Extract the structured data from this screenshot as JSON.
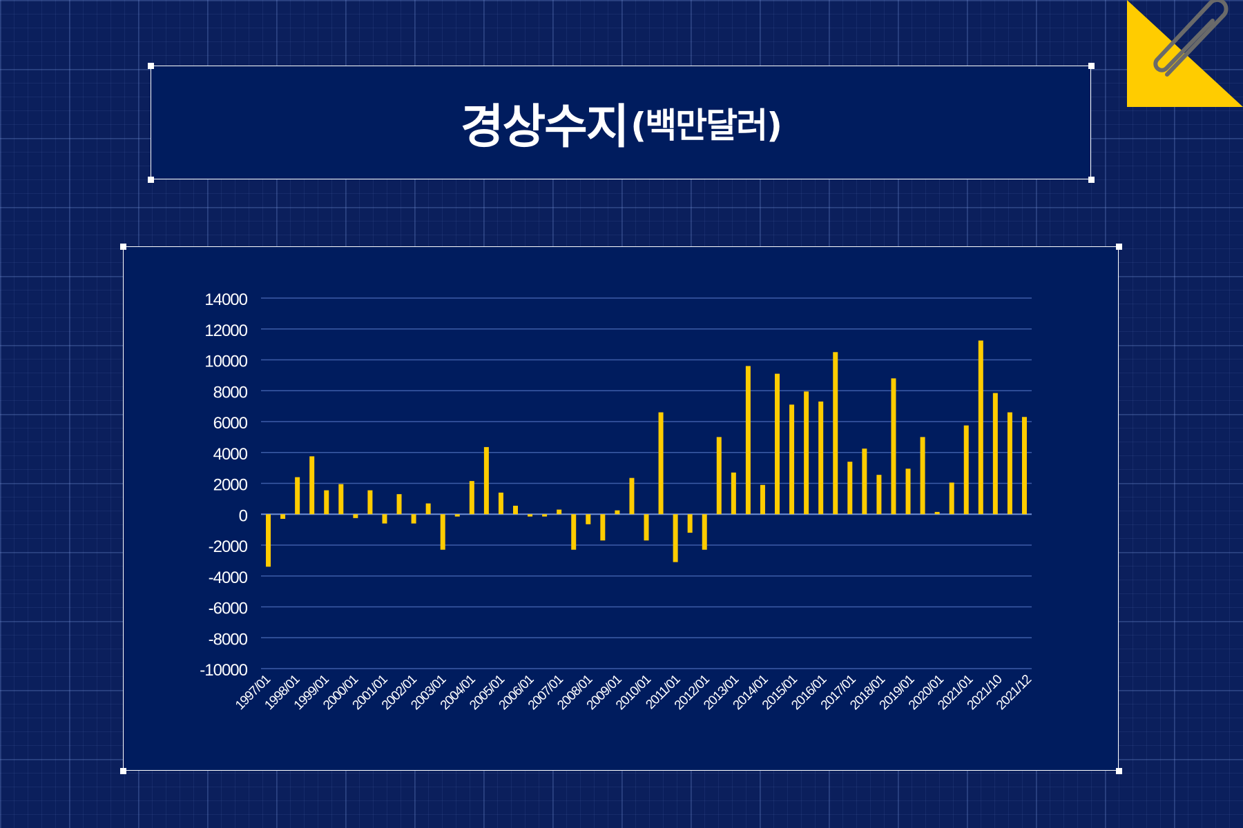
{
  "title": {
    "main": "경상수지",
    "sub": "(백만달러)"
  },
  "colors": {
    "background": "#0b1f5c",
    "panel": "#001c5e",
    "bar": "#ffcc00",
    "accent": "#ffcc00",
    "text": "#ffffff"
  },
  "icons": {
    "corner": "paperclip-icon"
  },
  "chart_data": {
    "type": "bar",
    "title": "경상수지(백만달러)",
    "xlabel": "",
    "ylabel": "",
    "ylim": [
      -10000,
      14000
    ],
    "yticks": [
      14000,
      12000,
      10000,
      8000,
      6000,
      4000,
      2000,
      0,
      -2000,
      -4000,
      -6000,
      -8000,
      -10000
    ],
    "grid": true,
    "legend": "none",
    "x_tick_labels": [
      "1997/01",
      "1998/01",
      "1999/01",
      "2000/01",
      "2001/01",
      "2002/01",
      "2003/01",
      "2004/01",
      "2005/01",
      "2006/01",
      "2007/01",
      "2008/01",
      "2009/01",
      "2010/01",
      "2011/01",
      "2012/01",
      "2013/01",
      "2014/01",
      "2015/01",
      "2016/01",
      "2017/01",
      "2018/01",
      "2019/01",
      "2020/01",
      "2021/01",
      "2021/10",
      "2021/12"
    ],
    "values": [
      -3400,
      -300,
      2400,
      3750,
      1550,
      1950,
      -250,
      1550,
      -600,
      1300,
      -600,
      700,
      -2300,
      -150,
      2150,
      4350,
      1400,
      550,
      -150,
      -150,
      300,
      -2300,
      -650,
      -1700,
      250,
      2350,
      -1700,
      6600,
      -3100,
      -1200,
      -2300,
      5000,
      2700,
      9600,
      1900,
      9100,
      7100,
      7950,
      7300,
      10500,
      3400,
      4250,
      2550,
      8800,
      2950,
      5000,
      150,
      2050,
      5750,
      11250,
      7850,
      6600,
      6300
    ]
  }
}
